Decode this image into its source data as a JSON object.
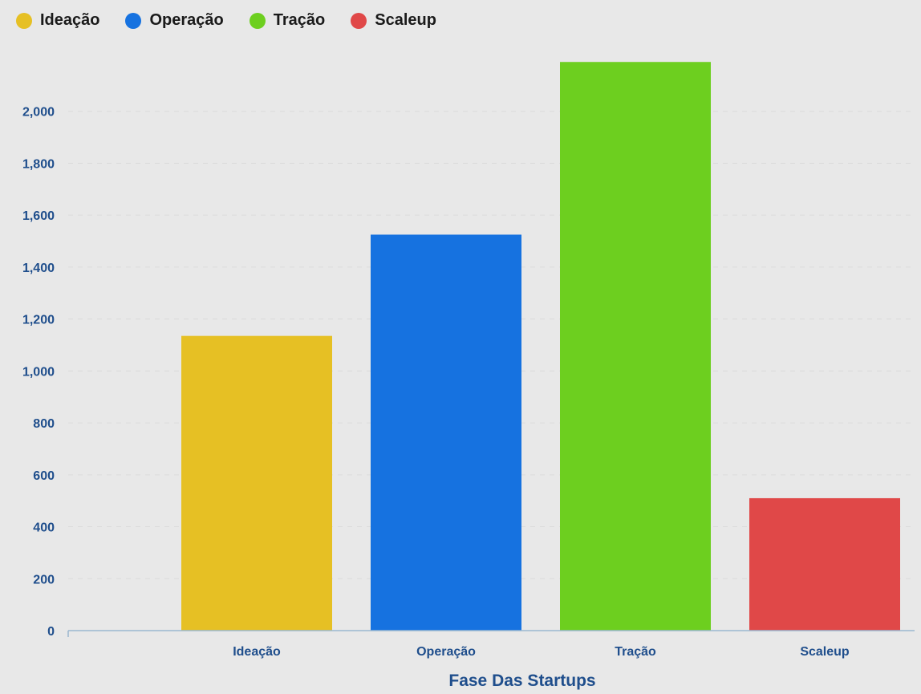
{
  "chart_data": {
    "type": "bar",
    "categories": [
      "Ideação",
      "Operação",
      "Tração",
      "Scaleup"
    ],
    "values": [
      1135,
      1525,
      2190,
      510
    ],
    "colors": [
      "#e6c024",
      "#1672e0",
      "#6dcf1f",
      "#e04848"
    ],
    "title": "",
    "xlabel": "Fase Das Startups",
    "ylabel": "",
    "ylim": [
      0,
      2200
    ],
    "yticks": [
      0,
      200,
      400,
      600,
      800,
      1000,
      1200,
      1400,
      1600,
      1800,
      2000
    ],
    "ytick_labels": [
      "0",
      "200",
      "400",
      "600",
      "800",
      "1,000",
      "1,200",
      "1,400",
      "1,600",
      "1,800",
      "2,000"
    ],
    "grid": true,
    "legend": "top-left"
  },
  "legend": {
    "items": [
      {
        "label": "Ideação",
        "color": "#e6c024"
      },
      {
        "label": "Operação",
        "color": "#1672e0"
      },
      {
        "label": "Tração",
        "color": "#6dcf1f"
      },
      {
        "label": "Scaleup",
        "color": "#e04848"
      }
    ]
  }
}
